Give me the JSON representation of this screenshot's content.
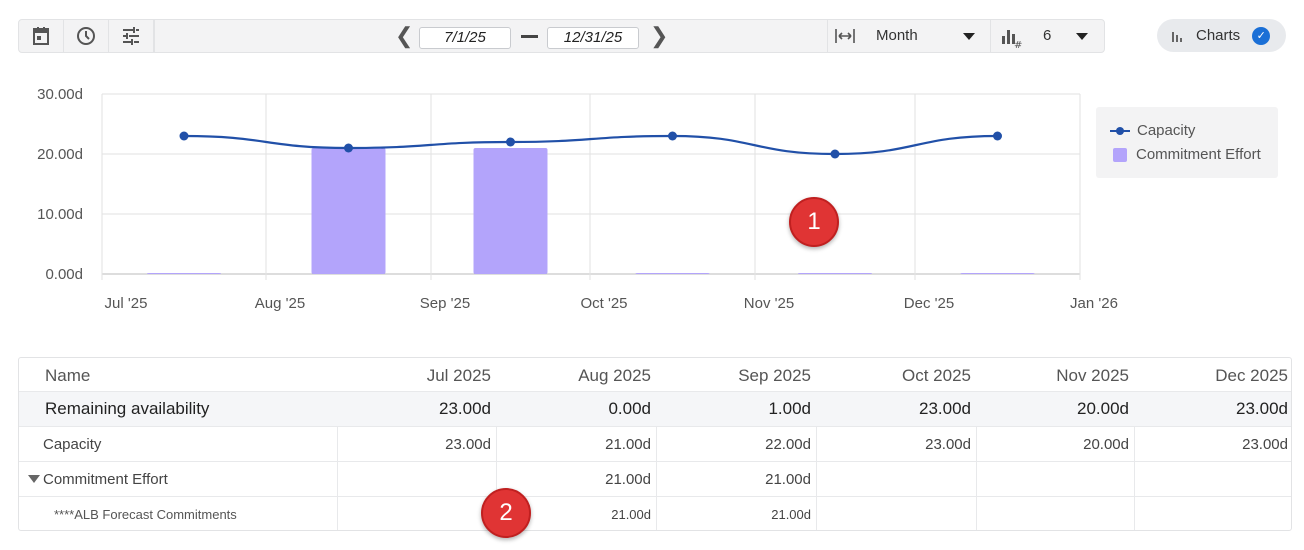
{
  "toolbar": {
    "icons": [
      "calendar-icon",
      "clock-icon",
      "sliders-icon"
    ],
    "start_date": "7/1/25",
    "end_date": "12/31/25",
    "period_select": "Month",
    "count_select": "6",
    "charts_label": "Charts"
  },
  "chart_data": {
    "type": "bar+line",
    "categories": [
      "Jul '25",
      "Aug '25",
      "Sep '25",
      "Oct '25",
      "Nov '25",
      "Dec '25"
    ],
    "x_ticks": [
      "Jul '25",
      "Aug '25",
      "Sep '25",
      "Oct '25",
      "Nov '25",
      "Dec '25",
      "Jan '26"
    ],
    "y_ticks": [
      "0.00d",
      "10.00d",
      "20.00d",
      "30.00d"
    ],
    "ylim": [
      0,
      30
    ],
    "grid": true,
    "legend_position": "right",
    "series": [
      {
        "name": "Capacity",
        "type": "line",
        "color": "#2150a8",
        "values": [
          23,
          21,
          22,
          23,
          20,
          23
        ]
      },
      {
        "name": "Commitment Effort",
        "type": "bar",
        "color": "#b3a4fb",
        "values": [
          0,
          21,
          21,
          0,
          0,
          0
        ]
      }
    ]
  },
  "table": {
    "headers": [
      "Name",
      "Jul 2025",
      "Aug 2025",
      "Sep 2025",
      "Oct 2025",
      "Nov 2025",
      "Dec 2025"
    ],
    "rows": [
      {
        "name": "Remaining availability",
        "values": [
          "23.00d",
          "0.00d",
          "1.00d",
          "23.00d",
          "20.00d",
          "23.00d"
        ]
      },
      {
        "name": "Capacity",
        "values": [
          "23.00d",
          "21.00d",
          "22.00d",
          "23.00d",
          "20.00d",
          "23.00d"
        ]
      },
      {
        "name": "Commitment Effort",
        "values": [
          "",
          "21.00d",
          "21.00d",
          "",
          "",
          ""
        ]
      },
      {
        "name": "****ALB Forecast Commitments",
        "values": [
          "",
          "21.00d",
          "21.00d",
          "",
          "",
          ""
        ]
      }
    ]
  },
  "markers": [
    "1",
    "2"
  ]
}
